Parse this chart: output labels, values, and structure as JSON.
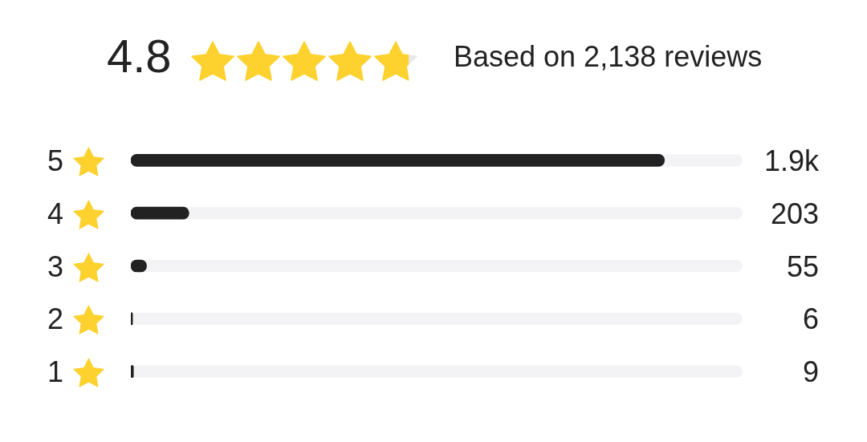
{
  "chart_data": {
    "type": "bar",
    "orientation": "horizontal",
    "title": "4.8",
    "subtitle": "Based on 2,138 reviews",
    "categories": [
      "5",
      "4",
      "3",
      "2",
      "1"
    ],
    "values": [
      1865,
      203,
      55,
      6,
      9
    ],
    "value_labels": [
      "1.9k",
      "203",
      "55",
      "6",
      "9"
    ],
    "color": "#222222",
    "xlim": [
      0,
      2138
    ],
    "tick_labels": "y"
  }
}
